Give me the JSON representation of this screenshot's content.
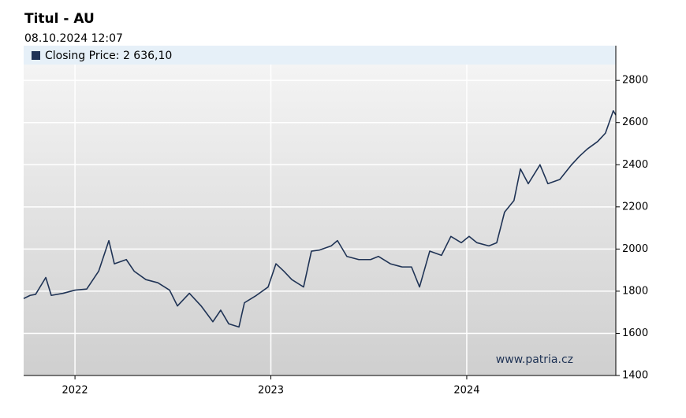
{
  "chart_data": {
    "type": "line",
    "title": "Titul - AU",
    "subtitle": "08.10.2024 12:07",
    "annotation": "www.patria.cz",
    "x": [
      2021.738,
      2021.771,
      2021.799,
      2021.851,
      2021.879,
      2021.94,
      2022.0,
      2022.06,
      2022.121,
      2022.173,
      2022.201,
      2022.262,
      2022.302,
      2022.362,
      2022.423,
      2022.483,
      2022.523,
      2022.584,
      2022.644,
      2022.704,
      2022.744,
      2022.785,
      2022.837,
      2022.865,
      2022.926,
      2022.986,
      2023.026,
      2023.066,
      2023.107,
      2023.167,
      2023.207,
      2023.247,
      2023.308,
      2023.34,
      2023.388,
      2023.449,
      2023.509,
      2023.549,
      2023.61,
      2023.67,
      2023.718,
      2023.759,
      2023.811,
      2023.871,
      2023.919,
      2023.972,
      2024.012,
      2024.052,
      2024.113,
      2024.153,
      2024.193,
      2024.241,
      2024.274,
      2024.314,
      2024.374,
      2024.414,
      2024.475,
      2024.535,
      2024.575,
      2024.616,
      2024.668,
      2024.708,
      2024.748,
      2024.761
    ],
    "series": [
      {
        "name": "Closing Price: 2 636,10",
        "color": "#1f3355",
        "values": [
          1765,
          1780,
          1785,
          1865,
          1780,
          1790,
          1805,
          1810,
          1895,
          2040,
          1930,
          1950,
          1895,
          1855,
          1840,
          1805,
          1730,
          1790,
          1730,
          1655,
          1710,
          1645,
          1630,
          1745,
          1780,
          1820,
          1930,
          1895,
          1855,
          1820,
          1990,
          1995,
          2015,
          2040,
          1965,
          1950,
          1950,
          1965,
          1930,
          1915,
          1915,
          1820,
          1990,
          1970,
          2060,
          2030,
          2060,
          2030,
          2015,
          2030,
          2175,
          2230,
          2380,
          2310,
          2400,
          2310,
          2330,
          2400,
          2440,
          2475,
          2510,
          2550,
          2656,
          2636
        ]
      }
    ],
    "xlim": [
      2021.738,
      2024.761
    ],
    "xticks": [
      2022,
      2023,
      2024
    ],
    "ylim": [
      1400,
      2965
    ],
    "yticks": [
      1400,
      1600,
      1800,
      2000,
      2200,
      2400,
      2600,
      2800
    ],
    "grid": true
  }
}
